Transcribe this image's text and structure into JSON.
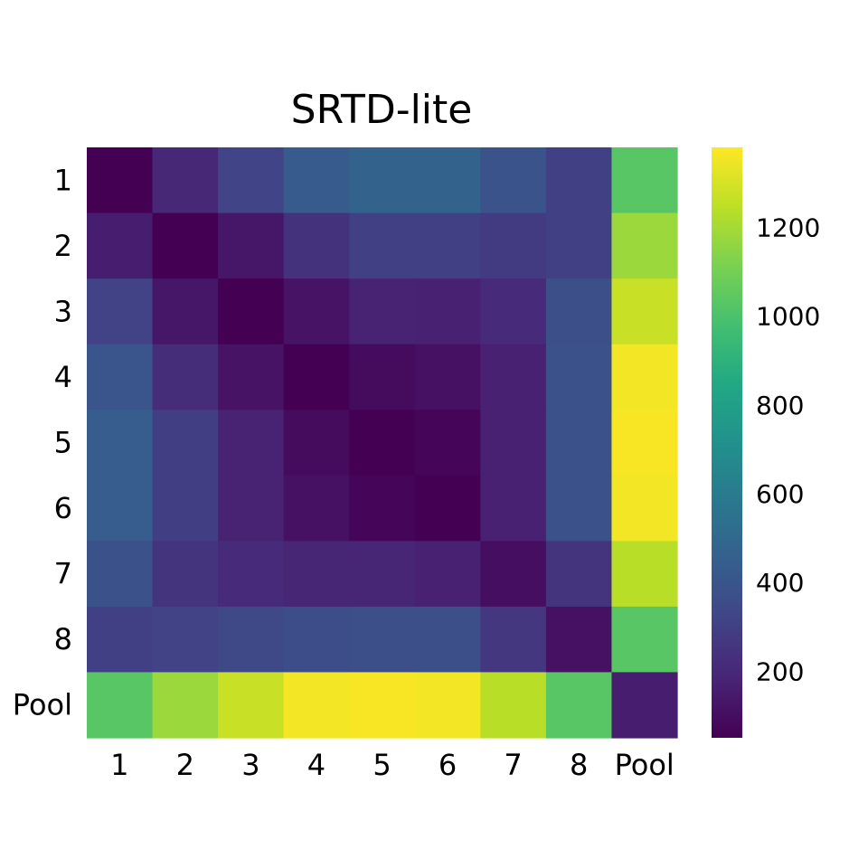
{
  "chart_data": {
    "type": "heatmap",
    "title": "SRTD-lite",
    "xlabel": "",
    "ylabel": "",
    "x_labels": [
      "1",
      "2",
      "3",
      "4",
      "5",
      "6",
      "7",
      "8",
      "Pool"
    ],
    "y_labels": [
      "1",
      "2",
      "3",
      "4",
      "5",
      "6",
      "7",
      "8",
      "Pool"
    ],
    "values": [
      [
        50,
        200,
        320,
        430,
        470,
        470,
        390,
        300,
        1030
      ],
      [
        160,
        50,
        130,
        240,
        300,
        300,
        280,
        300,
        1180
      ],
      [
        310,
        130,
        50,
        120,
        180,
        170,
        210,
        370,
        1270
      ],
      [
        400,
        220,
        120,
        50,
        90,
        110,
        170,
        380,
        1360
      ],
      [
        440,
        290,
        180,
        90,
        50,
        70,
        170,
        380,
        1370
      ],
      [
        440,
        290,
        180,
        110,
        70,
        50,
        170,
        380,
        1360
      ],
      [
        380,
        250,
        210,
        190,
        190,
        170,
        100,
        250,
        1240
      ],
      [
        300,
        310,
        340,
        360,
        370,
        370,
        260,
        110,
        1030
      ],
      [
        1030,
        1180,
        1270,
        1360,
        1370,
        1360,
        1240,
        1030,
        160
      ]
    ],
    "colormap": "viridis",
    "colorbar": {
      "min": 50,
      "max": 1380,
      "ticks": [
        200,
        400,
        600,
        800,
        1000,
        1200
      ]
    }
  }
}
